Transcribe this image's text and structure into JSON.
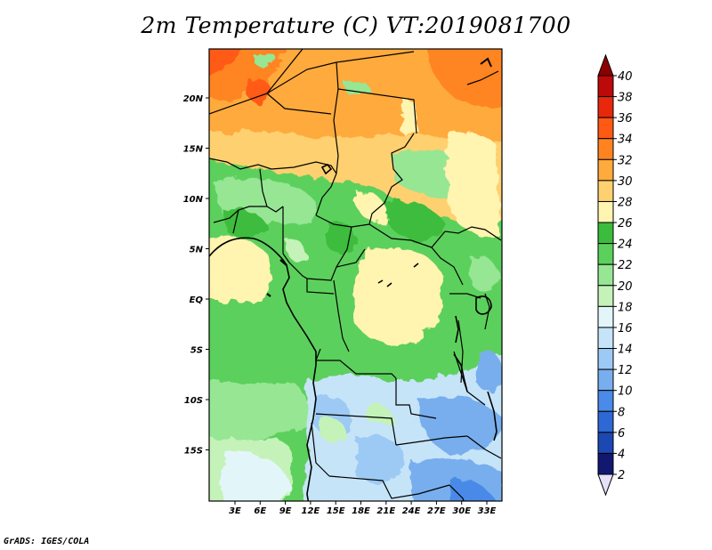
{
  "title": "2m Temperature (C) VT:2019081700",
  "credit": "GrADS: IGES/COLA",
  "map": {
    "lat_labels": [
      "20N",
      "15N",
      "10N",
      "5N",
      "EQ",
      "5S",
      "10S",
      "15S"
    ],
    "lon_labels": [
      "3E",
      "6E",
      "9E",
      "12E",
      "15E",
      "18E",
      "21E",
      "24E",
      "27E",
      "30E",
      "33E"
    ]
  },
  "colorbar": {
    "levels": [
      "2",
      "4",
      "6",
      "8",
      "10",
      "12",
      "14",
      "16",
      "18",
      "20",
      "22",
      "24",
      "26",
      "28",
      "30",
      "32",
      "34",
      "36",
      "38",
      "40"
    ],
    "colors": [
      "#e6e0f8",
      "#121870",
      "#1c48b4",
      "#2e68d4",
      "#4a8ae8",
      "#78aeee",
      "#9ccaf4",
      "#c6e4f8",
      "#e2f6fa",
      "#c4f2b8",
      "#96e694",
      "#5cd05c",
      "#3cbc3c",
      "#fff4b0",
      "#ffd070",
      "#ffaa3c",
      "#ff8420",
      "#ff5a14",
      "#e8280c",
      "#bc0a0a",
      "#8c0000"
    ]
  }
}
